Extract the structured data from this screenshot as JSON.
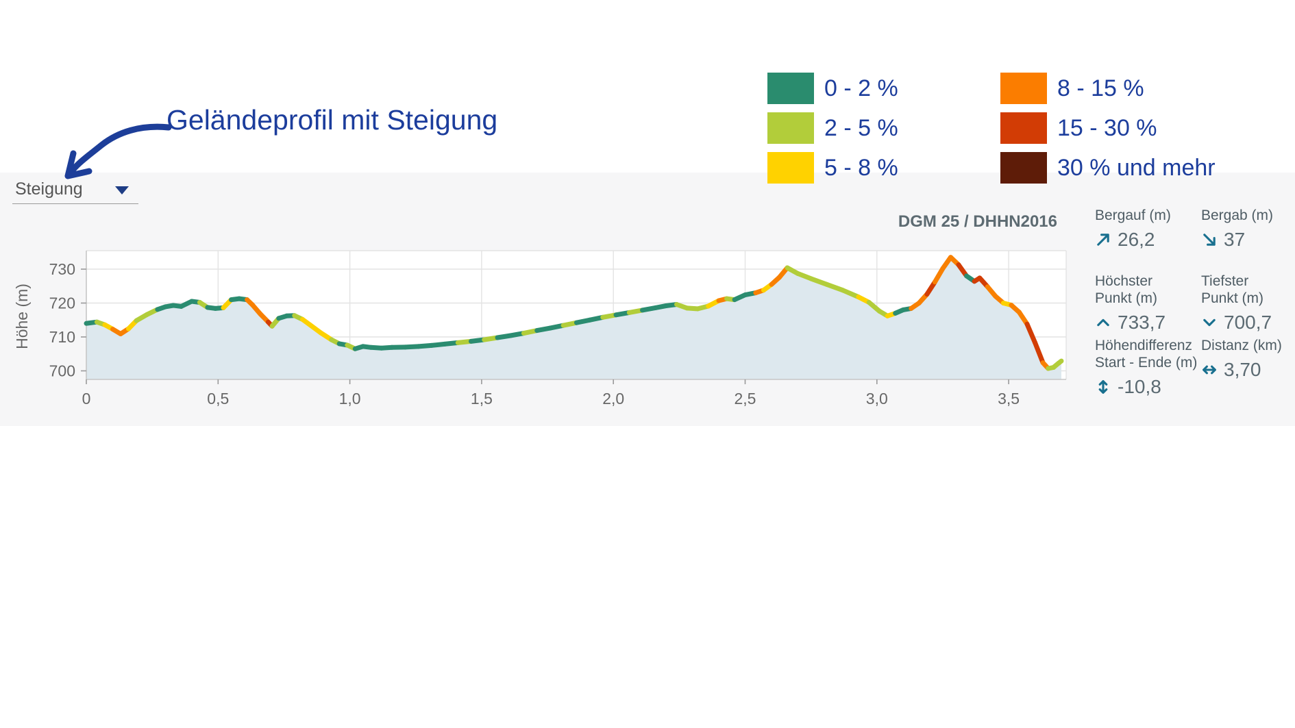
{
  "annotation": {
    "title": "Geländeprofil mit Steigung"
  },
  "slope_dropdown": {
    "label": "Steigung"
  },
  "legend": {
    "items": [
      {
        "label": "0 - 2 %",
        "color": "#2a8c6e"
      },
      {
        "label": "2 - 5 %",
        "color": "#b2cd3a"
      },
      {
        "label": "5 - 8 %",
        "color": "#ffd200"
      },
      {
        "label": "8 - 15 %",
        "color": "#fb7d00"
      },
      {
        "label": "15 - 30 %",
        "color": "#d23c05"
      },
      {
        "label": "30 % und mehr",
        "color": "#5e1c08"
      }
    ]
  },
  "source_label": "DGM 25 / DHHN2016",
  "stats": {
    "items": [
      {
        "id": "bergauf",
        "lines": [
          "Bergauf (m)"
        ],
        "value": "26,2",
        "icon": "arrow-up-right"
      },
      {
        "id": "bergab",
        "lines": [
          "Bergab (m)"
        ],
        "value": "37",
        "icon": "arrow-down-right"
      },
      {
        "id": "hoechster-punkt",
        "lines": [
          "Höchster",
          "Punkt (m)"
        ],
        "value": "733,7",
        "icon": "chevron-up"
      },
      {
        "id": "tiefster-punkt",
        "lines": [
          "Tiefster",
          "Punkt (m)"
        ],
        "value": "700,7",
        "icon": "chevron-down"
      },
      {
        "id": "hoehendifferenz",
        "lines": [
          "Höhendifferenz",
          "Start - Ende (m)"
        ],
        "value": "-10,8",
        "icon": "arrow-vertical"
      },
      {
        "id": "distanz",
        "lines": [
          "Distanz (km)"
        ],
        "value": "3,70",
        "icon": "arrow-horizontal"
      }
    ]
  },
  "chart_data": {
    "type": "area",
    "title": "",
    "ylabel": "Höhe (m)",
    "x_unit": "km",
    "xlim": [
      0,
      3.72
    ],
    "ylim": [
      698,
      735.5
    ],
    "grid": true,
    "area_fill": "#dde8ee",
    "x_ticks": [
      {
        "v": 0,
        "label": "0"
      },
      {
        "v": 0.5,
        "label": "0,5"
      },
      {
        "v": 1,
        "label": "1,0"
      },
      {
        "v": 1.5,
        "label": "1,5"
      },
      {
        "v": 2,
        "label": "2,0"
      },
      {
        "v": 2.5,
        "label": "2,5"
      },
      {
        "v": 3,
        "label": "3,0"
      },
      {
        "v": 3.5,
        "label": "3,5"
      }
    ],
    "y_ticks": [
      {
        "v": 700,
        "label": "700"
      },
      {
        "v": 710,
        "label": "710"
      },
      {
        "v": 720,
        "label": "720"
      },
      {
        "v": 730,
        "label": "730"
      }
    ],
    "segment_colors": {
      "t": "#2b8c70",
      "l": "#b2cd3a",
      "y": "#fdd100",
      "o": "#f88002",
      "r": "#d23d05"
    },
    "slope_class_of_color": {
      "t": "0 - 2 %",
      "l": "2 - 5 %",
      "y": "5 - 8 %",
      "o": "8 - 15 %",
      "r": "15 - 30 %"
    },
    "points": [
      [
        0.0,
        714.0,
        "t"
      ],
      [
        0.04,
        714.4,
        "t"
      ],
      [
        0.07,
        713.6,
        "l"
      ],
      [
        0.1,
        712.3,
        "y"
      ],
      [
        0.13,
        710.9,
        "o"
      ],
      [
        0.16,
        712.4,
        "o"
      ],
      [
        0.19,
        714.8,
        "y"
      ],
      [
        0.23,
        716.6,
        "l"
      ],
      [
        0.27,
        718.1,
        "l"
      ],
      [
        0.3,
        718.9,
        "t"
      ],
      [
        0.33,
        719.3,
        "t"
      ],
      [
        0.36,
        719.0,
        "t"
      ],
      [
        0.4,
        720.5,
        "t"
      ],
      [
        0.43,
        720.2,
        "t"
      ],
      [
        0.46,
        718.7,
        "l"
      ],
      [
        0.49,
        718.4,
        "t"
      ],
      [
        0.52,
        718.6,
        "t"
      ],
      [
        0.55,
        721.0,
        "y"
      ],
      [
        0.58,
        721.3,
        "t"
      ],
      [
        0.61,
        721.0,
        "t"
      ],
      [
        0.63,
        719.5,
        "o"
      ],
      [
        0.66,
        716.8,
        "o"
      ],
      [
        0.69,
        714.4,
        "o"
      ],
      [
        0.705,
        713.2,
        "r"
      ],
      [
        0.73,
        715.5,
        "l"
      ],
      [
        0.76,
        716.2,
        "t"
      ],
      [
        0.79,
        716.3,
        "t"
      ],
      [
        0.82,
        715.2,
        "l"
      ],
      [
        0.85,
        713.5,
        "y"
      ],
      [
        0.89,
        711.2,
        "y"
      ],
      [
        0.93,
        709.2,
        "y"
      ],
      [
        0.96,
        708.0,
        "l"
      ],
      [
        0.99,
        707.6,
        "t"
      ],
      [
        1.02,
        706.5,
        "l"
      ],
      [
        1.05,
        707.2,
        "t"
      ],
      [
        1.08,
        706.9,
        "t"
      ],
      [
        1.12,
        706.7,
        "t"
      ],
      [
        1.16,
        706.9,
        "t"
      ],
      [
        1.21,
        707.0,
        "t"
      ],
      [
        1.26,
        707.2,
        "t"
      ],
      [
        1.31,
        707.5,
        "t"
      ],
      [
        1.36,
        707.9,
        "t"
      ],
      [
        1.41,
        708.3,
        "t"
      ],
      [
        1.46,
        708.7,
        "l"
      ],
      [
        1.51,
        709.2,
        "t"
      ],
      [
        1.56,
        709.8,
        "l"
      ],
      [
        1.61,
        710.4,
        "t"
      ],
      [
        1.66,
        711.1,
        "t"
      ],
      [
        1.71,
        711.9,
        "l"
      ],
      [
        1.76,
        712.6,
        "t"
      ],
      [
        1.81,
        713.4,
        "t"
      ],
      [
        1.86,
        714.2,
        "l"
      ],
      [
        1.91,
        715.0,
        "t"
      ],
      [
        1.96,
        715.8,
        "t"
      ],
      [
        2.01,
        716.5,
        "l"
      ],
      [
        2.06,
        717.2,
        "t"
      ],
      [
        2.11,
        717.9,
        "l"
      ],
      [
        2.16,
        718.6,
        "t"
      ],
      [
        2.2,
        719.2,
        "t"
      ],
      [
        2.24,
        719.6,
        "t"
      ],
      [
        2.28,
        718.5,
        "l"
      ],
      [
        2.32,
        718.3,
        "l"
      ],
      [
        2.36,
        719.1,
        "l"
      ],
      [
        2.4,
        720.7,
        "y"
      ],
      [
        2.43,
        721.3,
        "o"
      ],
      [
        2.46,
        721.0,
        "l"
      ],
      [
        2.5,
        722.4,
        "t"
      ],
      [
        2.54,
        723.0,
        "t"
      ],
      [
        2.57,
        723.8,
        "o"
      ],
      [
        2.6,
        725.5,
        "y"
      ],
      [
        2.63,
        727.6,
        "o"
      ],
      [
        2.66,
        730.4,
        "o"
      ],
      [
        2.7,
        728.7,
        "l"
      ],
      [
        2.75,
        727.2,
        "l"
      ],
      [
        2.81,
        725.5,
        "l"
      ],
      [
        2.87,
        723.8,
        "l"
      ],
      [
        2.93,
        721.8,
        "l"
      ],
      [
        2.97,
        720.2,
        "y"
      ],
      [
        3.01,
        717.6,
        "l"
      ],
      [
        3.04,
        716.2,
        "l"
      ],
      [
        3.07,
        717.0,
        "y"
      ],
      [
        3.1,
        718.0,
        "t"
      ],
      [
        3.13,
        718.4,
        "t"
      ],
      [
        3.16,
        720.0,
        "o"
      ],
      [
        3.19,
        722.6,
        "o"
      ],
      [
        3.22,
        726.2,
        "r"
      ],
      [
        3.25,
        730.2,
        "o"
      ],
      [
        3.28,
        733.5,
        "o"
      ],
      [
        3.31,
        731.3,
        "o"
      ],
      [
        3.34,
        728.0,
        "r"
      ],
      [
        3.37,
        726.4,
        "t"
      ],
      [
        3.39,
        727.4,
        "r"
      ],
      [
        3.42,
        724.8,
        "r"
      ],
      [
        3.45,
        722.0,
        "o"
      ],
      [
        3.48,
        720.0,
        "o"
      ],
      [
        3.51,
        719.4,
        "y"
      ],
      [
        3.54,
        717.3,
        "o"
      ],
      [
        3.57,
        713.8,
        "o"
      ],
      [
        3.6,
        708.3,
        "r"
      ],
      [
        3.63,
        702.4,
        "r"
      ],
      [
        3.65,
        700.7,
        "o"
      ],
      [
        3.67,
        701.0,
        "l"
      ],
      [
        3.69,
        702.3,
        "l"
      ],
      [
        3.7,
        702.9,
        "l"
      ]
    ]
  }
}
